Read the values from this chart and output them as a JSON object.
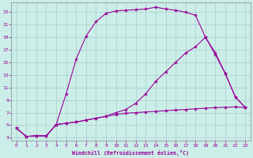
{
  "xlabel": "Windchill (Refroidissement éolien,°C)",
  "background_color": "#cceee8",
  "grid_color": "#aacccc",
  "line_color": "#990099",
  "xlim": [
    -0.5,
    23.5
  ],
  "ylim": [
    2.5,
    24.5
  ],
  "xticks": [
    0,
    1,
    2,
    3,
    4,
    5,
    6,
    7,
    8,
    9,
    10,
    11,
    12,
    13,
    14,
    15,
    16,
    17,
    18,
    19,
    20,
    21,
    22,
    23
  ],
  "yticks": [
    3,
    5,
    7,
    9,
    11,
    13,
    15,
    17,
    19,
    21,
    23
  ],
  "curve_bottom_x": [
    0,
    1,
    2,
    3,
    4,
    5,
    6,
    7,
    8,
    9,
    10,
    11,
    12,
    13,
    14,
    15,
    16,
    17,
    18,
    19,
    20,
    21,
    22,
    23
  ],
  "curve_bottom_y": [
    4.5,
    3.2,
    3.3,
    3.3,
    5.1,
    5.3,
    5.5,
    5.8,
    6.1,
    6.4,
    6.7,
    6.9,
    7.0,
    7.1,
    7.2,
    7.3,
    7.4,
    7.5,
    7.6,
    7.7,
    7.8,
    7.85,
    7.9,
    7.8
  ],
  "curve_top_x": [
    0,
    1,
    2,
    3,
    4,
    5,
    6,
    7,
    8,
    9,
    10,
    11,
    12,
    13,
    14,
    15,
    16,
    17,
    18,
    19,
    20,
    21,
    22,
    23
  ],
  "curve_top_y": [
    4.5,
    3.2,
    3.3,
    3.3,
    5.1,
    10.0,
    15.5,
    19.2,
    21.5,
    22.8,
    23.2,
    23.3,
    23.4,
    23.5,
    23.8,
    23.5,
    23.3,
    23.0,
    22.5,
    19.0,
    16.2,
    13.2,
    9.5,
    7.8
  ],
  "curve_mid_x": [
    0,
    1,
    2,
    3,
    4,
    5,
    6,
    7,
    8,
    9,
    10,
    11,
    12,
    13,
    14,
    15,
    16,
    17,
    18,
    19,
    20,
    21,
    22,
    23
  ],
  "curve_mid_y": [
    4.5,
    3.2,
    3.3,
    3.3,
    5.1,
    5.3,
    5.5,
    5.8,
    6.1,
    6.4,
    7.0,
    7.5,
    8.5,
    10.0,
    12.0,
    13.5,
    15.0,
    16.5,
    17.5,
    19.0,
    16.5,
    13.2,
    9.5,
    7.8
  ]
}
